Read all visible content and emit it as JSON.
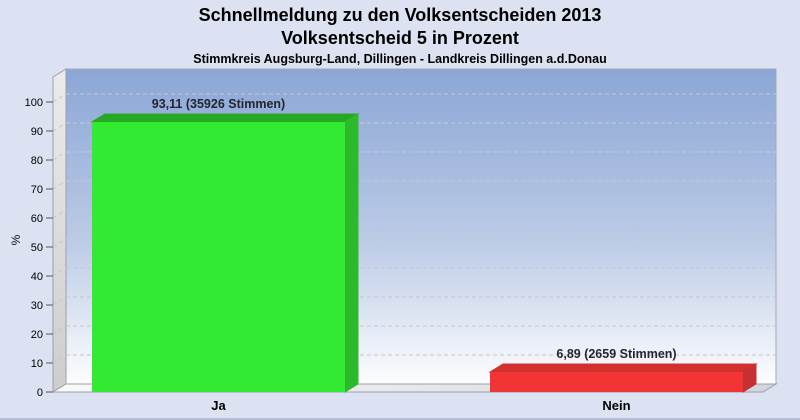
{
  "header": {
    "title": "Schnellmeldung zu den Volksentscheiden 2013",
    "subtitle": "Volksentscheid 5 in Prozent",
    "region": "Stimmkreis Augsburg-Land, Dillingen - Landkreis Dillingen a.d.Donau"
  },
  "chart_data": {
    "type": "bar",
    "style": "3d-vertical-bars",
    "categories": [
      "Ja",
      "Nein"
    ],
    "values": [
      93.11,
      6.89
    ],
    "value_labels": [
      "93,11 (35926 Stimmen)",
      "6,89 (2659 Stimmen)"
    ],
    "votes": [
      35926,
      2659
    ],
    "xlabel": "",
    "ylabel": "%",
    "ylim": [
      0,
      105
    ],
    "yticks": [
      0,
      10,
      20,
      30,
      40,
      50,
      60,
      70,
      80,
      90,
      100
    ],
    "grid": "dashed horizontal gridlines on back wall",
    "legend": "none",
    "bar_colors": [
      {
        "name": "green-ja",
        "front": "#33EA33",
        "top": "#26A826",
        "side": "#2CBA2C"
      },
      {
        "name": "red-nein",
        "front": "#F23434",
        "top": "#D22F2F",
        "side": "#C53030"
      }
    ],
    "colors": {
      "page_background": "#DCE2F1",
      "wall_gradient_top": "#8BA6D6",
      "wall_gradient_bottom": "#FDFDFE",
      "side_wall": "#D9D9D9",
      "floor_left": "#FAFAFA",
      "floor_right": "#D2D5D9"
    }
  }
}
